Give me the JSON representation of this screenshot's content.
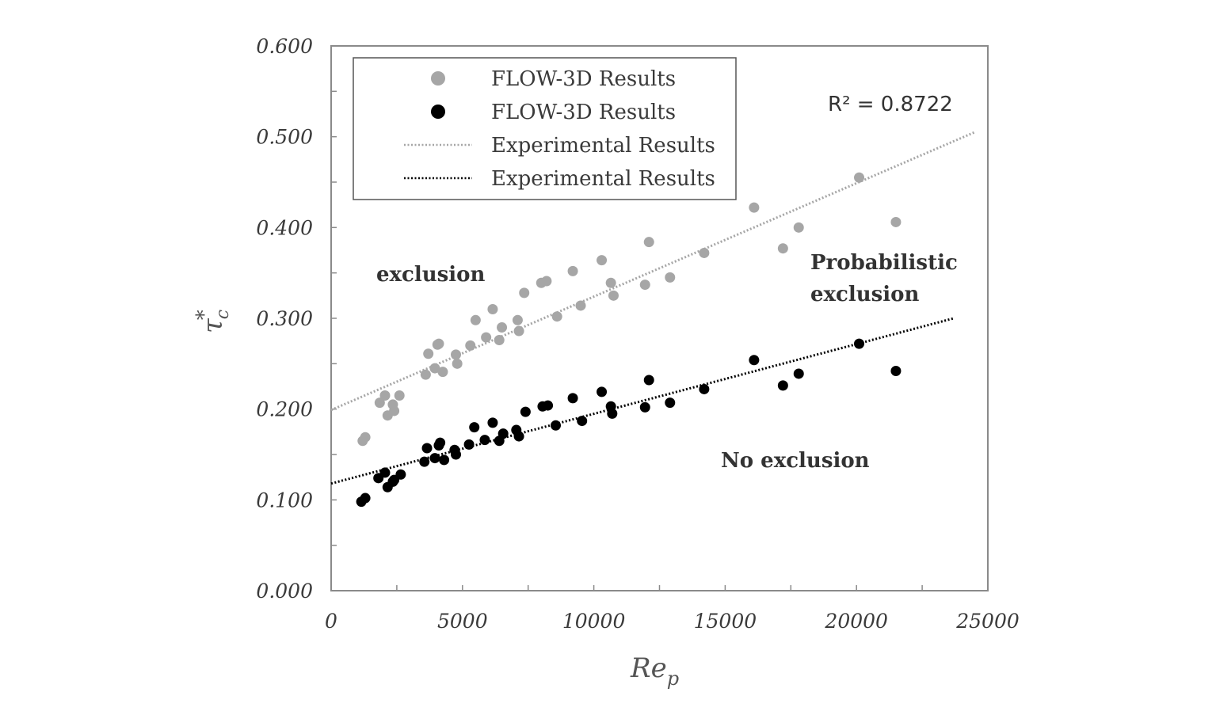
{
  "chart_data": {
    "type": "scatter",
    "xlabel_main": "Re",
    "xlabel_sub": "p",
    "ylabel_main": "τ",
    "ylabel_sup": "*",
    "ylabel_sub": "c",
    "xlim": [
      0,
      25000
    ],
    "ylim": [
      0,
      0.6
    ],
    "x_ticks": [
      "0",
      "5000",
      "10000",
      "15000",
      "20000",
      "25000"
    ],
    "x_tick_values": [
      0,
      5000,
      10000,
      15000,
      20000,
      25000
    ],
    "y_ticks": [
      "0.000",
      "0.100",
      "0.200",
      "0.300",
      "0.400",
      "0.500",
      "0.600"
    ],
    "y_tick_values": [
      0,
      0.1,
      0.2,
      0.3,
      0.4,
      0.5,
      0.6
    ],
    "grid": false,
    "legend_position": "top-left",
    "legend": [
      {
        "label": "FLOW-3D Results",
        "kind": "marker",
        "color": "#a6a6a6"
      },
      {
        "label": "FLOW-3D Results",
        "kind": "marker",
        "color": "#000000"
      },
      {
        "label": "Experimental Results",
        "kind": "dotted-line",
        "color": "#a6a6a6"
      },
      {
        "label": "Experimental Results",
        "kind": "dotted-line",
        "color": "#000000"
      }
    ],
    "r_squared": "R² = 0.8722",
    "annotations": [
      {
        "text": "exclusion"
      },
      {
        "text": "Probabilistic"
      },
      {
        "text": "exclusion"
      },
      {
        "text": "No exclusion"
      }
    ],
    "series": [
      {
        "name": "FLOW-3D Results",
        "color": "#a6a6a6",
        "points": [
          [
            1200,
            0.165
          ],
          [
            1300,
            0.169
          ],
          [
            1850,
            0.207
          ],
          [
            2050,
            0.215
          ],
          [
            2150,
            0.193
          ],
          [
            2350,
            0.205
          ],
          [
            2400,
            0.198
          ],
          [
            2600,
            0.215
          ],
          [
            3600,
            0.238
          ],
          [
            3700,
            0.261
          ],
          [
            3950,
            0.245
          ],
          [
            4050,
            0.271
          ],
          [
            4100,
            0.272
          ],
          [
            4250,
            0.241
          ],
          [
            4750,
            0.26
          ],
          [
            4800,
            0.25
          ],
          [
            5300,
            0.27
          ],
          [
            5500,
            0.298
          ],
          [
            5900,
            0.279
          ],
          [
            6150,
            0.31
          ],
          [
            6400,
            0.276
          ],
          [
            6500,
            0.29
          ],
          [
            7100,
            0.298
          ],
          [
            7150,
            0.286
          ],
          [
            7350,
            0.328
          ],
          [
            8000,
            0.339
          ],
          [
            8200,
            0.341
          ],
          [
            8600,
            0.302
          ],
          [
            9200,
            0.352
          ],
          [
            9500,
            0.314
          ],
          [
            10300,
            0.364
          ],
          [
            10650,
            0.339
          ],
          [
            10750,
            0.325
          ],
          [
            11950,
            0.337
          ],
          [
            12100,
            0.384
          ],
          [
            12900,
            0.345
          ],
          [
            14200,
            0.372
          ],
          [
            16100,
            0.422
          ],
          [
            17200,
            0.377
          ],
          [
            17800,
            0.4
          ],
          [
            20100,
            0.455
          ],
          [
            21500,
            0.406
          ]
        ],
        "trend": {
          "x": [
            0,
            24500
          ],
          "y": [
            0.199,
            0.505
          ]
        }
      },
      {
        "name": "FLOW-3D Results",
        "color": "#000000",
        "points": [
          [
            1150,
            0.098
          ],
          [
            1300,
            0.102
          ],
          [
            1800,
            0.124
          ],
          [
            2050,
            0.13
          ],
          [
            2150,
            0.114
          ],
          [
            2350,
            0.12
          ],
          [
            2400,
            0.122
          ],
          [
            2650,
            0.128
          ],
          [
            3550,
            0.142
          ],
          [
            3650,
            0.157
          ],
          [
            3950,
            0.146
          ],
          [
            4100,
            0.16
          ],
          [
            4150,
            0.163
          ],
          [
            4300,
            0.144
          ],
          [
            4700,
            0.155
          ],
          [
            4750,
            0.15
          ],
          [
            5250,
            0.161
          ],
          [
            5450,
            0.18
          ],
          [
            5850,
            0.166
          ],
          [
            6150,
            0.185
          ],
          [
            6400,
            0.165
          ],
          [
            6550,
            0.173
          ],
          [
            7050,
            0.177
          ],
          [
            7150,
            0.17
          ],
          [
            7400,
            0.197
          ],
          [
            8050,
            0.203
          ],
          [
            8250,
            0.204
          ],
          [
            8550,
            0.182
          ],
          [
            9200,
            0.212
          ],
          [
            9550,
            0.187
          ],
          [
            10300,
            0.219
          ],
          [
            10650,
            0.203
          ],
          [
            10700,
            0.195
          ],
          [
            11950,
            0.202
          ],
          [
            12100,
            0.232
          ],
          [
            12900,
            0.207
          ],
          [
            14200,
            0.222
          ],
          [
            16100,
            0.254
          ],
          [
            17200,
            0.226
          ],
          [
            17800,
            0.239
          ],
          [
            20100,
            0.272
          ],
          [
            21500,
            0.242
          ]
        ],
        "trend": {
          "x": [
            0,
            23700
          ],
          "y": [
            0.118,
            0.3
          ]
        }
      }
    ]
  }
}
